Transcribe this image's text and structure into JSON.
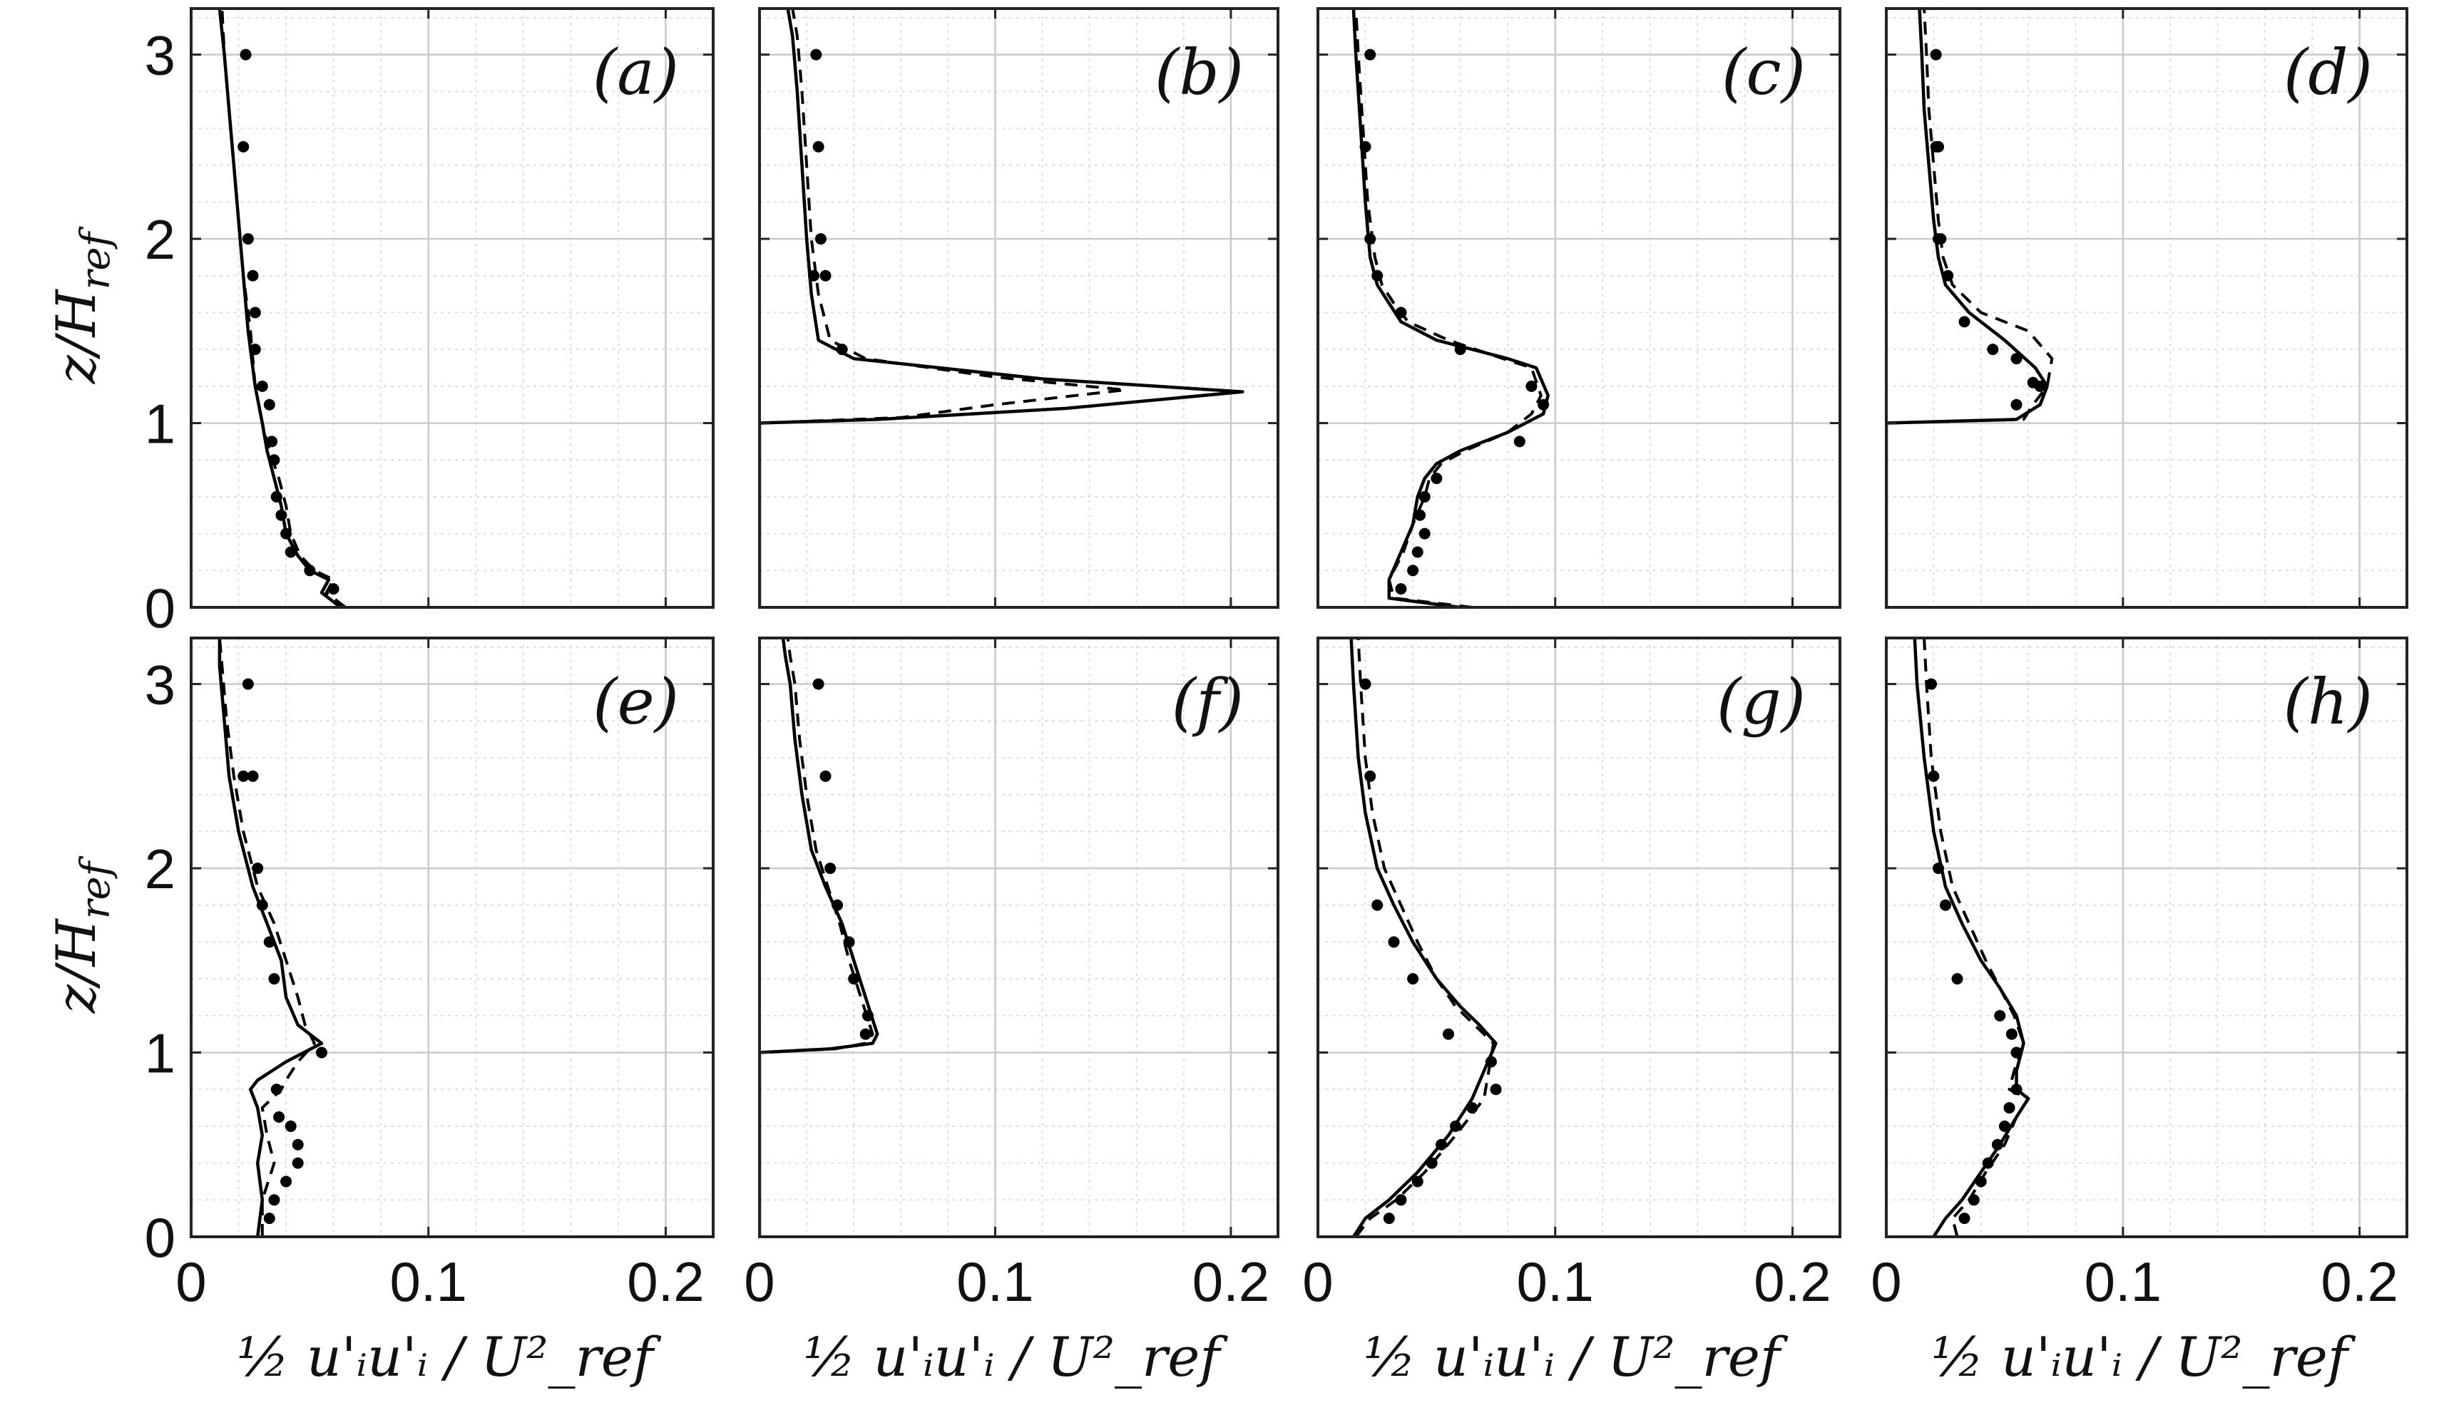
{
  "chart_data": [
    {
      "type": "line",
      "panel_label": "(a)",
      "xlim": [
        0,
        0.22
      ],
      "ylim": [
        0,
        3.25
      ],
      "xticks": [
        "0",
        "0.1",
        "0.2"
      ],
      "yticks": [
        "0",
        "1",
        "2",
        "3"
      ],
      "ylabel": "z/H_ref",
      "xlabel": "½ u'ᵢu'ᵢ / U²_ref",
      "grid": true,
      "series": [
        {
          "style": "solid",
          "x": [
            0.063,
            0.055,
            0.058,
            0.05,
            0.045,
            0.04,
            0.038,
            0.035,
            0.032,
            0.03,
            0.027,
            0.024,
            0.022,
            0.02,
            0.018,
            0.016,
            0.014,
            0.012
          ],
          "y": [
            0.0,
            0.08,
            0.15,
            0.2,
            0.28,
            0.4,
            0.55,
            0.7,
            0.85,
            1.0,
            1.2,
            1.5,
            1.8,
            2.1,
            2.4,
            2.7,
            3.0,
            3.25
          ]
        },
        {
          "style": "dashed",
          "x": [
            0.065,
            0.057,
            0.06,
            0.052,
            0.046,
            0.042,
            0.04,
            0.037,
            0.033,
            0.03,
            0.027,
            0.025,
            0.022,
            0.02,
            0.018,
            0.016,
            0.014,
            0.013
          ],
          "y": [
            0.0,
            0.08,
            0.15,
            0.2,
            0.28,
            0.4,
            0.55,
            0.7,
            0.85,
            1.0,
            1.2,
            1.5,
            1.8,
            2.1,
            2.4,
            2.7,
            3.0,
            3.25
          ]
        },
        {
          "style": "markers",
          "x": [
            0.06,
            0.05,
            0.042,
            0.04,
            0.038,
            0.036,
            0.035,
            0.034,
            0.033,
            0.03,
            0.027,
            0.027,
            0.026,
            0.024,
            0.022,
            0.023
          ],
          "y": [
            0.1,
            0.2,
            0.3,
            0.4,
            0.5,
            0.6,
            0.8,
            0.9,
            1.1,
            1.2,
            1.4,
            1.6,
            1.8,
            2.0,
            2.5,
            3.0
          ]
        }
      ]
    },
    {
      "type": "line",
      "panel_label": "(b)",
      "xlim": [
        0,
        0.22
      ],
      "ylim": [
        0,
        3.25
      ],
      "xticks": [
        "0",
        "0.1",
        "0.2"
      ],
      "yticks": [
        "0",
        "1",
        "2",
        "3"
      ],
      "ylabel": "",
      "xlabel": "½ u'ᵢu'ᵢ / U²_ref",
      "grid": true,
      "series": [
        {
          "style": "solid",
          "x": [
            0.0,
            0.0,
            0.05,
            0.13,
            0.205,
            0.12,
            0.04,
            0.025,
            0.022,
            0.02,
            0.018,
            0.016,
            0.014,
            0.012
          ],
          "y": [
            0.0,
            1.0,
            1.02,
            1.08,
            1.17,
            1.24,
            1.35,
            1.45,
            1.7,
            2.0,
            2.4,
            2.8,
            3.1,
            3.25
          ]
        },
        {
          "style": "dashed",
          "x": [
            0.0,
            0.0,
            0.06,
            0.1,
            0.155,
            0.1,
            0.045,
            0.03,
            0.025,
            0.022,
            0.02,
            0.018,
            0.016,
            0.014
          ],
          "y": [
            0.0,
            1.0,
            1.03,
            1.1,
            1.18,
            1.25,
            1.35,
            1.45,
            1.7,
            2.0,
            2.4,
            2.8,
            3.1,
            3.25
          ]
        },
        {
          "style": "markers",
          "x": [
            0.035,
            0.028,
            0.026,
            0.025,
            0.024,
            0.023
          ],
          "y": [
            1.4,
            1.8,
            2.0,
            2.5,
            3.0,
            1.8
          ]
        }
      ]
    },
    {
      "type": "line",
      "panel_label": "(c)",
      "xlim": [
        0,
        0.22
      ],
      "ylim": [
        0,
        3.25
      ],
      "xticks": [
        "0",
        "0.1",
        "0.2"
      ],
      "yticks": [
        "0",
        "1",
        "2",
        "3"
      ],
      "ylabel": "",
      "xlabel": "½ u'ᵢu'ᵢ / U²_ref",
      "grid": true,
      "series": [
        {
          "style": "solid",
          "x": [
            0.06,
            0.03,
            0.03,
            0.035,
            0.04,
            0.042,
            0.045,
            0.05,
            0.06,
            0.08,
            0.095,
            0.097,
            0.092,
            0.08,
            0.05,
            0.035,
            0.03,
            0.025,
            0.022,
            0.02,
            0.018,
            0.016,
            0.015
          ],
          "y": [
            0.0,
            0.05,
            0.15,
            0.3,
            0.45,
            0.6,
            0.7,
            0.78,
            0.85,
            0.95,
            1.05,
            1.15,
            1.3,
            1.35,
            1.45,
            1.55,
            1.65,
            1.75,
            1.9,
            2.2,
            2.6,
            3.0,
            3.25
          ]
        },
        {
          "style": "dashed",
          "x": [
            0.065,
            0.032,
            0.03,
            0.036,
            0.04,
            0.045,
            0.047,
            0.052,
            0.062,
            0.08,
            0.09,
            0.094,
            0.09,
            0.078,
            0.055,
            0.038,
            0.032,
            0.027,
            0.024,
            0.021,
            0.019,
            0.017,
            0.016
          ],
          "y": [
            0.0,
            0.05,
            0.15,
            0.3,
            0.45,
            0.6,
            0.7,
            0.78,
            0.85,
            0.95,
            1.05,
            1.15,
            1.3,
            1.35,
            1.45,
            1.55,
            1.65,
            1.75,
            1.9,
            2.2,
            2.6,
            3.0,
            3.25
          ]
        },
        {
          "style": "markers",
          "x": [
            0.035,
            0.04,
            0.042,
            0.045,
            0.043,
            0.045,
            0.05,
            0.085,
            0.095,
            0.09,
            0.06,
            0.035,
            0.025,
            0.022,
            0.02,
            0.022
          ],
          "y": [
            0.1,
            0.2,
            0.3,
            0.4,
            0.5,
            0.6,
            0.7,
            0.9,
            1.1,
            1.2,
            1.4,
            1.6,
            1.8,
            2.0,
            2.5,
            3.0
          ]
        }
      ]
    },
    {
      "type": "line",
      "panel_label": "(d)",
      "xlim": [
        0,
        0.22
      ],
      "ylim": [
        0,
        3.25
      ],
      "xticks": [
        "0",
        "0.1",
        "0.2"
      ],
      "yticks": [
        "0",
        "1",
        "2",
        "3"
      ],
      "ylabel": "",
      "xlabel": "½ u'ᵢu'ᵢ / U²_ref",
      "grid": true,
      "series": [
        {
          "style": "solid",
          "x": [
            0.0,
            0.0,
            0.055,
            0.065,
            0.068,
            0.063,
            0.05,
            0.035,
            0.025,
            0.022,
            0.02,
            0.018,
            0.016,
            0.015,
            0.014
          ],
          "y": [
            0.0,
            1.0,
            1.02,
            1.1,
            1.2,
            1.3,
            1.45,
            1.6,
            1.75,
            1.9,
            2.1,
            2.4,
            2.7,
            3.0,
            3.25
          ]
        },
        {
          "style": "dashed",
          "x": [
            0.0,
            0.0,
            0.058,
            0.062,
            0.068,
            0.07,
            0.06,
            0.04,
            0.028,
            0.024,
            0.022,
            0.02,
            0.018,
            0.017,
            0.016
          ],
          "y": [
            0.0,
            1.0,
            1.02,
            1.1,
            1.2,
            1.35,
            1.5,
            1.6,
            1.75,
            1.9,
            2.1,
            2.4,
            2.7,
            3.0,
            3.25
          ]
        },
        {
          "style": "markers",
          "x": [
            0.055,
            0.065,
            0.062,
            0.055,
            0.045,
            0.033,
            0.026,
            0.023,
            0.022,
            0.021,
            0.022,
            0.021
          ],
          "y": [
            1.1,
            1.2,
            1.22,
            1.35,
            1.4,
            1.55,
            1.8,
            2.0,
            2.0,
            2.5,
            2.5,
            3.0
          ]
        }
      ]
    },
    {
      "type": "line",
      "panel_label": "(e)",
      "xlim": [
        0,
        0.22
      ],
      "ylim": [
        0,
        3.25
      ],
      "xticks": [
        "0",
        "0.1",
        "0.2"
      ],
      "yticks": [
        "0",
        "1",
        "2",
        "3"
      ],
      "ylabel": "z/H_ref",
      "xlabel": "½ u'ᵢu'ᵢ / U²_ref",
      "grid": true,
      "series": [
        {
          "style": "solid",
          "x": [
            0.028,
            0.03,
            0.028,
            0.03,
            0.028,
            0.025,
            0.028,
            0.04,
            0.055,
            0.045,
            0.04,
            0.038,
            0.032,
            0.026,
            0.02,
            0.016,
            0.014,
            0.012,
            0.012
          ],
          "y": [
            0.0,
            0.2,
            0.4,
            0.55,
            0.7,
            0.8,
            0.85,
            0.95,
            1.05,
            1.15,
            1.3,
            1.5,
            1.7,
            1.9,
            2.2,
            2.5,
            2.8,
            3.1,
            3.25
          ]
        },
        {
          "style": "dashed",
          "x": [
            0.03,
            0.03,
            0.035,
            0.032,
            0.03,
            0.038,
            0.04,
            0.045,
            0.052,
            0.048,
            0.045,
            0.04,
            0.035,
            0.028,
            0.022,
            0.018,
            0.015,
            0.013,
            0.012
          ],
          "y": [
            0.0,
            0.2,
            0.4,
            0.55,
            0.7,
            0.8,
            0.85,
            0.95,
            1.05,
            1.15,
            1.3,
            1.5,
            1.7,
            1.9,
            2.2,
            2.5,
            2.8,
            3.1,
            3.25
          ]
        },
        {
          "style": "markers",
          "x": [
            0.033,
            0.035,
            0.04,
            0.045,
            0.045,
            0.042,
            0.037,
            0.036,
            0.055,
            0.035,
            0.033,
            0.03,
            0.028,
            0.026,
            0.024,
            0.022
          ],
          "y": [
            0.1,
            0.2,
            0.3,
            0.4,
            0.5,
            0.6,
            0.65,
            0.8,
            1.0,
            1.4,
            1.6,
            1.8,
            2.0,
            2.5,
            3.0,
            2.5
          ]
        }
      ]
    },
    {
      "type": "line",
      "panel_label": "(f)",
      "xlim": [
        0,
        0.22
      ],
      "ylim": [
        0,
        3.25
      ],
      "xticks": [
        "0",
        "0.1",
        "0.2"
      ],
      "yticks": [
        "0",
        "1",
        "2",
        "3"
      ],
      "ylabel": "",
      "xlabel": "½ u'ᵢu'ᵢ / U²_ref",
      "grid": true,
      "series": [
        {
          "style": "solid",
          "x": [
            0.0,
            0.0,
            0.03,
            0.048,
            0.05,
            0.045,
            0.04,
            0.035,
            0.028,
            0.022,
            0.018,
            0.015,
            0.013,
            0.011,
            0.01
          ],
          "y": [
            0.0,
            1.0,
            1.02,
            1.05,
            1.1,
            1.3,
            1.5,
            1.7,
            1.9,
            2.1,
            2.4,
            2.7,
            3.0,
            3.15,
            3.25
          ]
        },
        {
          "style": "dashed",
          "x": [
            0.0,
            0.0,
            0.032,
            0.045,
            0.048,
            0.043,
            0.038,
            0.034,
            0.029,
            0.024,
            0.02,
            0.017,
            0.015,
            0.013,
            0.012
          ],
          "y": [
            0.0,
            1.0,
            1.02,
            1.05,
            1.1,
            1.3,
            1.5,
            1.7,
            1.9,
            2.1,
            2.4,
            2.7,
            3.0,
            3.15,
            3.25
          ]
        },
        {
          "style": "markers",
          "x": [
            0.045,
            0.046,
            0.04,
            0.038,
            0.033,
            0.03,
            0.028,
            0.025
          ],
          "y": [
            1.1,
            1.2,
            1.4,
            1.6,
            1.8,
            2.0,
            2.5,
            3.0
          ]
        }
      ]
    },
    {
      "type": "line",
      "panel_label": "(g)",
      "xlim": [
        0,
        0.22
      ],
      "ylim": [
        0,
        3.25
      ],
      "xticks": [
        "0",
        "0.1",
        "0.2"
      ],
      "yticks": [
        "0",
        "1",
        "2",
        "3"
      ],
      "ylabel": "",
      "xlabel": "½ u'ᵢu'ᵢ / U²_ref",
      "grid": true,
      "series": [
        {
          "style": "solid",
          "x": [
            0.015,
            0.02,
            0.03,
            0.042,
            0.055,
            0.065,
            0.075,
            0.068,
            0.06,
            0.05,
            0.04,
            0.032,
            0.025,
            0.02,
            0.017,
            0.015,
            0.014
          ],
          "y": [
            0.0,
            0.1,
            0.2,
            0.35,
            0.55,
            0.75,
            1.05,
            1.15,
            1.25,
            1.4,
            1.6,
            1.8,
            2.0,
            2.3,
            2.6,
            3.0,
            3.25
          ]
        },
        {
          "style": "dashed",
          "x": [
            0.016,
            0.022,
            0.033,
            0.045,
            0.058,
            0.07,
            0.074,
            0.066,
            0.058,
            0.05,
            0.042,
            0.035,
            0.028,
            0.023,
            0.02,
            0.018,
            0.017
          ],
          "y": [
            0.0,
            0.1,
            0.2,
            0.35,
            0.55,
            0.75,
            1.05,
            1.15,
            1.25,
            1.4,
            1.6,
            1.8,
            2.0,
            2.3,
            2.6,
            3.0,
            3.25
          ]
        },
        {
          "style": "markers",
          "x": [
            0.03,
            0.035,
            0.042,
            0.048,
            0.052,
            0.058,
            0.065,
            0.075,
            0.073,
            0.055,
            0.04,
            0.032,
            0.025,
            0.022,
            0.02
          ],
          "y": [
            0.1,
            0.2,
            0.3,
            0.4,
            0.5,
            0.6,
            0.7,
            0.8,
            0.95,
            1.1,
            1.4,
            1.6,
            1.8,
            2.5,
            3.0
          ]
        }
      ]
    },
    {
      "type": "line",
      "panel_label": "(h)",
      "xlim": [
        0,
        0.22
      ],
      "ylim": [
        0,
        3.25
      ],
      "xticks": [
        "0",
        "0.1",
        "0.2"
      ],
      "yticks": [
        "0",
        "1",
        "2",
        "3"
      ],
      "ylabel": "",
      "xlabel": "½ u'ᵢu'ᵢ / U²_ref",
      "grid": true,
      "series": [
        {
          "style": "solid",
          "x": [
            0.02,
            0.025,
            0.032,
            0.04,
            0.048,
            0.055,
            0.06,
            0.055,
            0.055,
            0.058,
            0.055,
            0.048,
            0.04,
            0.032,
            0.025,
            0.02,
            0.016,
            0.013,
            0.012
          ],
          "y": [
            0.0,
            0.1,
            0.2,
            0.35,
            0.5,
            0.65,
            0.75,
            0.8,
            0.9,
            1.05,
            1.2,
            1.35,
            1.5,
            1.7,
            1.9,
            2.2,
            2.6,
            3.0,
            3.25
          ]
        },
        {
          "style": "dashed",
          "x": [
            0.03,
            0.028,
            0.035,
            0.042,
            0.05,
            0.055,
            0.06,
            0.052,
            0.054,
            0.058,
            0.054,
            0.048,
            0.042,
            0.035,
            0.028,
            0.023,
            0.019,
            0.017,
            0.016
          ],
          "y": [
            0.0,
            0.1,
            0.2,
            0.35,
            0.5,
            0.65,
            0.75,
            0.8,
            0.9,
            1.05,
            1.2,
            1.35,
            1.5,
            1.7,
            1.9,
            2.2,
            2.6,
            3.0,
            3.25
          ]
        },
        {
          "style": "markers",
          "x": [
            0.033,
            0.037,
            0.04,
            0.043,
            0.047,
            0.05,
            0.052,
            0.055,
            0.055,
            0.053,
            0.048,
            0.03,
            0.025,
            0.022,
            0.02,
            0.019
          ],
          "y": [
            0.1,
            0.2,
            0.3,
            0.4,
            0.5,
            0.6,
            0.7,
            0.8,
            1.0,
            1.1,
            1.2,
            1.4,
            1.8,
            2.0,
            2.5,
            3.0
          ]
        }
      ]
    }
  ]
}
